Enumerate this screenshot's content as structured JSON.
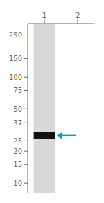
{
  "chart_data": {
    "type": "gel",
    "categories": [
      "1",
      "2"
    ],
    "values": [
      28,
      null
    ],
    "color": "#111111",
    "log": "y",
    "ylim": [
      8,
      320
    ],
    "yticks": [
      250,
      150,
      100,
      75,
      50,
      37,
      25,
      20,
      15,
      10
    ],
    "grid": false,
    "annotations": [
      {
        "category": "1",
        "value": 28,
        "color": "#00aaaa"
      }
    ]
  }
}
